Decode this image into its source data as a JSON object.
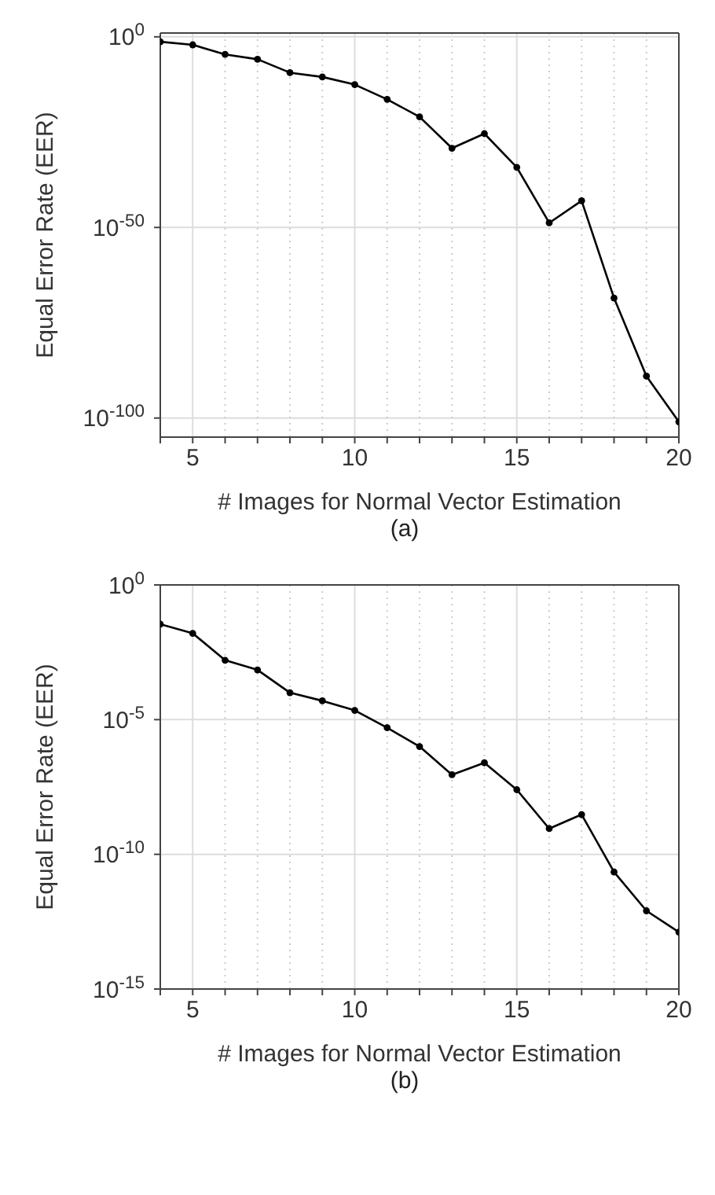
{
  "chart_data": [
    {
      "type": "line",
      "xlabel": "# Images for Normal Vector Estimation",
      "ylabel": "Equal Error Rate (EER)",
      "annotations": [
        "(a)"
      ],
      "x": [
        4,
        5,
        6,
        7,
        8,
        9,
        10,
        11,
        12,
        13,
        14,
        15,
        16,
        17,
        18,
        19,
        20
      ],
      "series": [
        {
          "color": "#000000",
          "values": [
            0.05,
            0.008,
            2.5e-05,
            1.3e-06,
            4e-10,
            3e-11,
            3e-13,
            4e-17,
            1e-21,
            6e-30,
            4e-26,
            6e-35,
            1.6e-49,
            1e-43,
            3e-69,
            1e-89,
            1e-101
          ]
        }
      ],
      "log": "y",
      "xlim": [
        4,
        20
      ],
      "ylim": [
        1e-105,
        10
      ],
      "xticks": [
        {
          "value": 4,
          "label": null
        },
        5,
        {
          "value": 6,
          "label": null
        },
        {
          "value": 7,
          "label": null
        },
        {
          "value": 8,
          "label": null
        },
        {
          "value": 9,
          "label": null
        },
        10,
        {
          "value": 11,
          "label": null
        },
        {
          "value": 12,
          "label": null
        },
        {
          "value": 13,
          "label": null
        },
        {
          "value": 14,
          "label": null
        },
        15,
        {
          "value": 16,
          "label": null
        },
        {
          "value": 17,
          "label": null
        },
        {
          "value": 18,
          "label": null
        },
        {
          "value": 19,
          "label": null
        },
        20
      ],
      "yticks": [
        {
          "value": 1e-100,
          "label": "10$^{-100}$"
        },
        {
          "value": 1e-50,
          "label": "10$^{-50}$"
        },
        {
          "value": 1,
          "label": "10$^{0}$"
        }
      ],
      "grid": true,
      "marker": "circle",
      "line_style": "solid",
      "legend": false
    },
    {
      "type": "line",
      "xlabel": "# Images for Normal Vector Estimation",
      "ylabel": "Equal Error Rate (EER)",
      "annotations": [
        "(b)"
      ],
      "x": [
        4,
        5,
        6,
        7,
        8,
        9,
        10,
        11,
        12,
        13,
        14,
        15,
        16,
        17,
        18,
        19,
        20
      ],
      "series": [
        {
          "color": "#000000",
          "values": [
            0.035,
            0.016,
            0.0016,
            0.0007,
            0.0001,
            5e-05,
            2.2e-05,
            5e-06,
            1e-06,
            9e-08,
            2.5e-07,
            2.5e-08,
            9e-10,
            3e-09,
            2.2e-11,
            8e-13,
            1.3e-13
          ]
        }
      ],
      "log": "y",
      "xlim": [
        4,
        20
      ],
      "ylim": [
        1e-15,
        1
      ],
      "xticks": [
        {
          "value": 4,
          "label": null
        },
        5,
        {
          "value": 6,
          "label": null
        },
        {
          "value": 7,
          "label": null
        },
        {
          "value": 8,
          "label": null
        },
        {
          "value": 9,
          "label": null
        },
        10,
        {
          "value": 11,
          "label": null
        },
        {
          "value": 12,
          "label": null
        },
        {
          "value": 13,
          "label": null
        },
        {
          "value": 14,
          "label": null
        },
        15,
        {
          "value": 16,
          "label": null
        },
        {
          "value": 17,
          "label": null
        },
        {
          "value": 18,
          "label": null
        },
        {
          "value": 19,
          "label": null
        },
        20
      ],
      "yticks": [
        {
          "value": 1e-15,
          "label": "10$^{-15}$"
        },
        {
          "value": 1e-10,
          "label": "10$^{-10}$"
        },
        {
          "value": 1e-05,
          "label": "10$^{-5}$"
        },
        {
          "value": 1,
          "label": "10$^{0}$"
        }
      ],
      "grid": true,
      "marker": "circle",
      "line_style": "solid",
      "legend": false
    }
  ]
}
